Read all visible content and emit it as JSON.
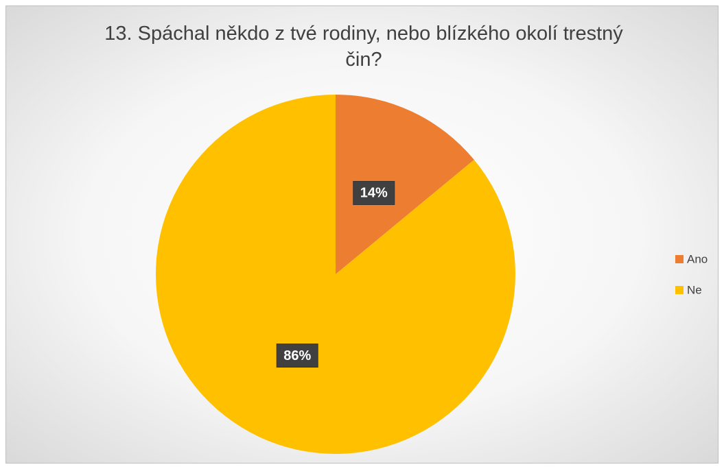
{
  "chart_data": {
    "type": "pie",
    "title": "13. Spáchal někdo z tvé rodiny, nebo blízkého okolí trestný čin?",
    "categories": [
      "Ano",
      "Ne"
    ],
    "values": [
      14,
      86
    ],
    "value_labels": [
      "14%",
      "86%"
    ],
    "colors": [
      "#ed7d31",
      "#ffc000"
    ],
    "legend": "right"
  }
}
